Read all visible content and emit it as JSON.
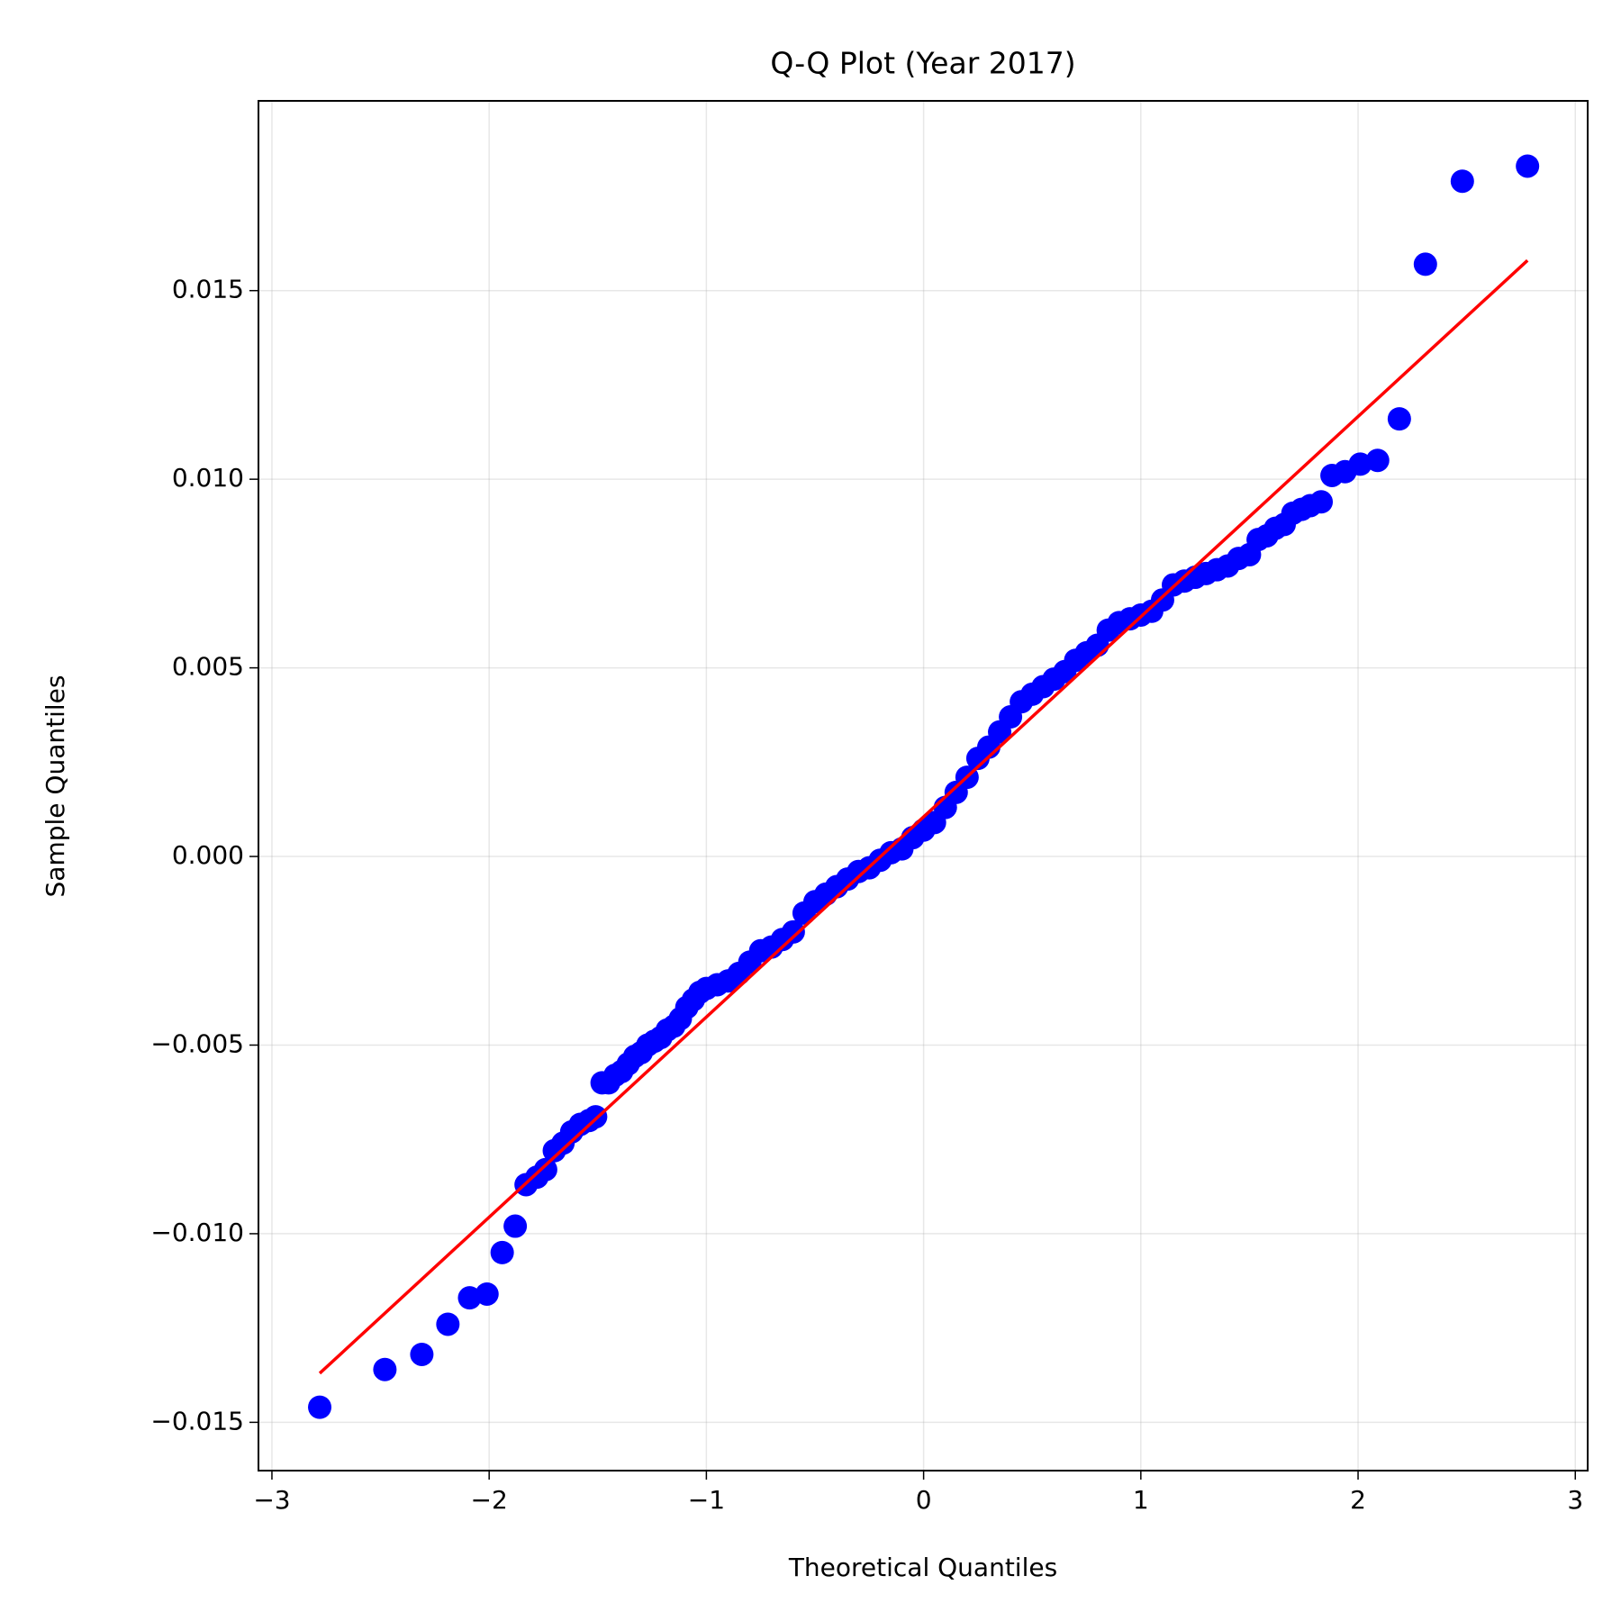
{
  "chart_data": {
    "type": "scatter",
    "title": "Q-Q Plot (Year 2017)",
    "x_label": "Theoretical Quantiles",
    "y_label": "Sample Quantiles",
    "color": "#0000ff",
    "grid": true,
    "xlim": [
      -3.062,
      3.057
    ],
    "ylim": [
      -0.01628,
      0.02003
    ],
    "xticks": [
      {
        "value": -3,
        "label": "−3"
      },
      {
        "value": -2,
        "label": "−2"
      },
      {
        "value": -1,
        "label": "−1"
      },
      0,
      1,
      2,
      3
    ],
    "yticks": [
      {
        "value": -0.015,
        "label": "−0.015"
      },
      {
        "value": -0.01,
        "label": "−0.010"
      },
      {
        "value": -0.005,
        "label": "−0.005"
      },
      {
        "value": 0,
        "label": "0.000"
      },
      {
        "value": 0.005,
        "label": "0.005"
      },
      {
        "value": 0.01,
        "label": "0.010"
      },
      {
        "value": 0.015,
        "label": "0.015"
      }
    ],
    "x": [
      -2.78,
      -2.48,
      -2.31,
      -2.19,
      -2.09,
      -2.01,
      -1.94,
      -1.88,
      -1.83,
      -1.78,
      -1.74,
      -1.7,
      -1.66,
      -1.62,
      -1.58,
      -1.54,
      -1.51,
      -1.48,
      -1.45,
      -1.42,
      -1.39,
      -1.36,
      -1.33,
      -1.3,
      -1.27,
      -1.24,
      -1.21,
      -1.18,
      -1.15,
      -1.12,
      -1.09,
      -1.06,
      -1.03,
      -1.0,
      -0.95,
      -0.9,
      -0.85,
      -0.8,
      -0.75,
      -0.7,
      -0.65,
      -0.6,
      -0.55,
      -0.5,
      -0.45,
      -0.4,
      -0.35,
      -0.3,
      -0.25,
      -0.2,
      -0.15,
      -0.1,
      -0.05,
      0,
      0.05,
      0.1,
      0.15,
      0.2,
      0.25,
      0.3,
      0.35,
      0.4,
      0.45,
      0.5,
      0.55,
      0.6,
      0.65,
      0.7,
      0.75,
      0.8,
      0.85,
      0.9,
      0.95,
      1.0,
      1.05,
      1.1,
      1.15,
      1.2,
      1.25,
      1.3,
      1.35,
      1.4,
      1.45,
      1.5,
      1.54,
      1.58,
      1.62,
      1.66,
      1.7,
      1.74,
      1.78,
      1.83,
      1.88,
      1.94,
      2.01,
      2.09,
      2.19,
      2.31,
      2.48,
      2.78
    ],
    "values": [
      -0.0146,
      -0.0136,
      -0.0132,
      -0.0124,
      -0.0117,
      -0.0116,
      -0.0105,
      -0.0098,
      -0.0087,
      -0.0085,
      -0.0083,
      -0.0078,
      -0.0076,
      -0.0073,
      -0.0071,
      -0.007,
      -0.0069,
      -0.006,
      -0.006,
      -0.0058,
      -0.0057,
      -0.0055,
      -0.0053,
      -0.0052,
      -0.005,
      -0.0049,
      -0.0048,
      -0.0046,
      -0.0045,
      -0.0043,
      -0.004,
      -0.0038,
      -0.0036,
      -0.0035,
      -0.0034,
      -0.0033,
      -0.0031,
      -0.0028,
      -0.0025,
      -0.0024,
      -0.0022,
      -0.002,
      -0.0015,
      -0.0012,
      -0.001,
      -0.0008,
      -0.0006,
      -0.0004,
      -0.0003,
      -0.0001,
      0.0001,
      0.0002,
      0.0005,
      0.0007,
      0.0009,
      0.0013,
      0.0017,
      0.0021,
      0.0026,
      0.0029,
      0.0033,
      0.0037,
      0.0041,
      0.0043,
      0.0045,
      0.0047,
      0.0049,
      0.0052,
      0.0054,
      0.0056,
      0.006,
      0.0062,
      0.0063,
      0.0064,
      0.0065,
      0.0068,
      0.0072,
      0.0073,
      0.0074,
      0.0075,
      0.0076,
      0.0077,
      0.0079,
      0.008,
      0.0084,
      0.0085,
      0.0087,
      0.0088,
      0.0091,
      0.0092,
      0.0093,
      0.0094,
      0.0101,
      0.0102,
      0.0104,
      0.0105,
      0.0116,
      0.0157,
      0.0179,
      0.0183
    ],
    "reference_line": {
      "x": [
        -2.78,
        2.78
      ],
      "values": [
        -0.0137,
        0.0158
      ],
      "color": "#ff0000"
    }
  }
}
